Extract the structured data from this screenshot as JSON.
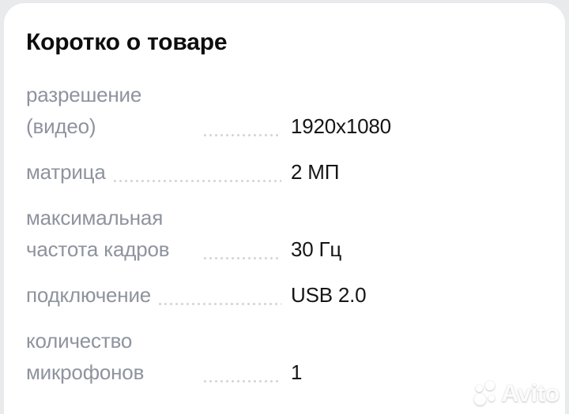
{
  "card": {
    "title": "Коротко о товаре",
    "specs": [
      {
        "label": "разрешение (видео)",
        "value": "1920x1080"
      },
      {
        "label": "матрица",
        "value": "2 МП"
      },
      {
        "label": "максимальная частота кадров",
        "value": "30 Гц"
      },
      {
        "label": "подключение",
        "value": "USB 2.0"
      },
      {
        "label": "количество микрофонов",
        "value": "1"
      }
    ]
  },
  "watermark": {
    "text": "Avito",
    "logo": "avito-dots-icon"
  },
  "colors": {
    "page_background": "#e9eaec",
    "card_background": "#ffffff",
    "title_text": "#0d0d0d",
    "label_text": "#8e939e",
    "value_text": "#151515",
    "leader_dots": "#d2d5d8",
    "watermark": "rgba(255,255,255,0.95)"
  }
}
